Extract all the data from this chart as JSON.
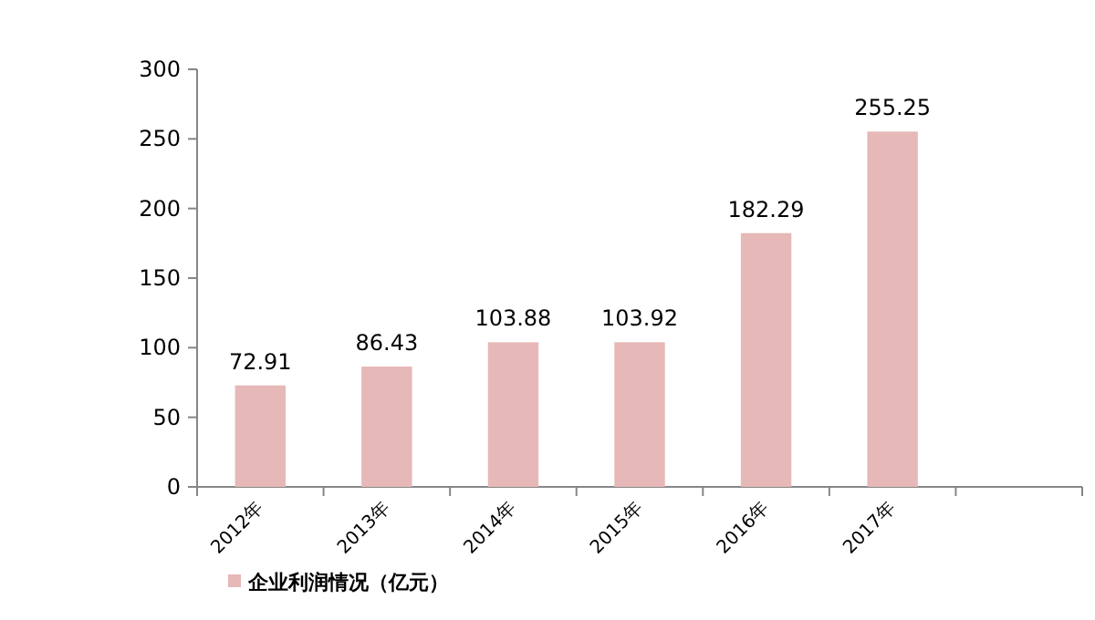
{
  "chart_data": {
    "type": "bar",
    "categories": [
      "2012年",
      "2013年",
      "2014年",
      "2015年",
      "2016年",
      "2017年",
      null
    ],
    "series": [
      {
        "name": "企业利润情况（亿元）",
        "color": "#e6b8b7",
        "values": [
          72.91,
          86.43,
          103.88,
          103.92,
          182.29,
          255.25,
          null
        ]
      }
    ],
    "ylim": [
      0,
      300
    ],
    "yticks": [
      0,
      50,
      100,
      150,
      200,
      250,
      300
    ],
    "data_labels": true,
    "legend": "bottom left"
  }
}
